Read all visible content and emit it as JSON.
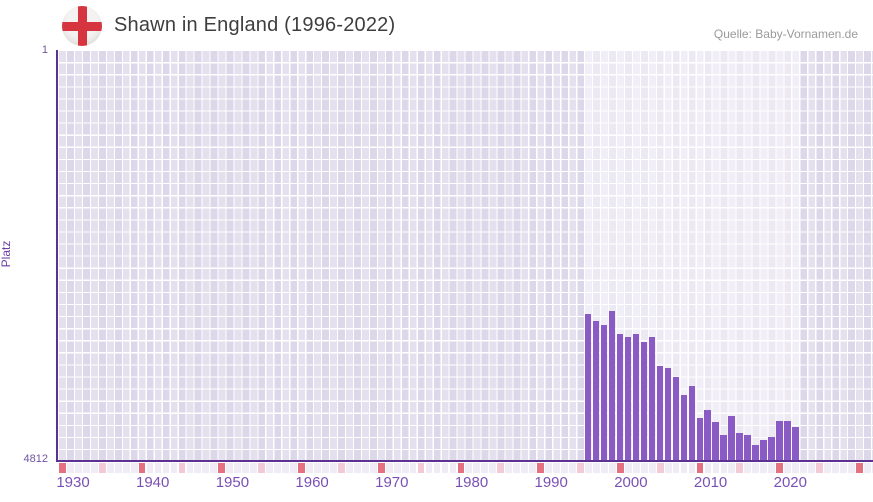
{
  "header": {
    "title": "Shawn in England (1996-2022)",
    "source": "Quelle: Baby-Vornamen.de"
  },
  "chart": {
    "y_axis": {
      "label": "Platz",
      "top_tick": "1",
      "bottom_tick": "4812"
    },
    "x_axis": {
      "ticks": [
        "1930",
        "1940",
        "1950",
        "1960",
        "1970",
        "1980",
        "1990",
        "2000",
        "2010",
        "2020"
      ]
    }
  },
  "colors": {
    "bar": "#8b5bc5",
    "axis_line": "#5b3192",
    "flag_cross": "#d63540",
    "strip_default": "#f0ecf6",
    "strip_decade": "#e4717f",
    "strip_half_decade": "#f4c9d6"
  },
  "chart_data": {
    "type": "bar",
    "title": "Shawn in England (1996-2022)",
    "xlabel": "",
    "ylabel": "Platz",
    "x_range": [
      1930,
      2032
    ],
    "ylim": [
      1,
      4812
    ],
    "y_axis_inverted": true,
    "grid": true,
    "legend": false,
    "highlight_years": [
      1996,
      2022
    ],
    "x": [
      1996,
      1997,
      1998,
      1999,
      2000,
      2001,
      2002,
      2003,
      2004,
      2005,
      2006,
      2007,
      2008,
      2009,
      2010,
      2011,
      2012,
      2013,
      2014,
      2015,
      2016,
      2017,
      2018,
      2019,
      2020,
      2021,
      2022
    ],
    "values": [
      3090,
      3170,
      3215,
      3060,
      3320,
      3355,
      3320,
      3415,
      3355,
      3695,
      3720,
      3825,
      4035,
      3930,
      4305,
      4215,
      4355,
      4505,
      4285,
      4480,
      4505,
      4625,
      4565,
      4530,
      4340,
      4340,
      4415
    ]
  }
}
